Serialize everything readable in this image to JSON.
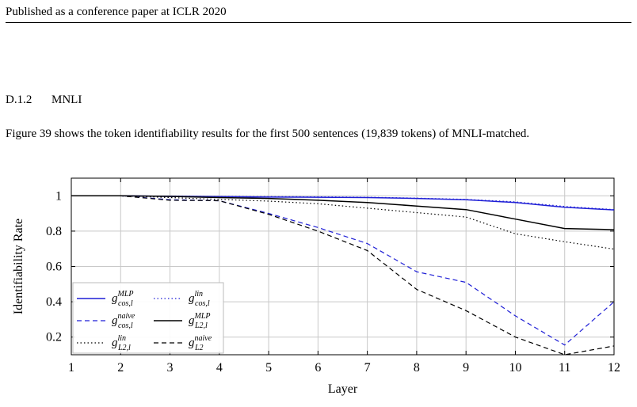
{
  "header": {
    "running_title": "Published as a conference paper at ICLR 2020"
  },
  "section": {
    "number": "D.1.2",
    "title": "MNLI"
  },
  "paragraph": "Figure 39 shows the token identifiability results for the first 500 sentences (19,839 tokens) of MNLI-matched.",
  "chart_data": {
    "type": "line",
    "xlabel": "Layer",
    "ylabel": "Identifiability Rate",
    "xlim": [
      1,
      12
    ],
    "ylim": [
      0.1,
      1.1
    ],
    "x": [
      1,
      2,
      3,
      4,
      5,
      6,
      7,
      8,
      9,
      10,
      11,
      12
    ],
    "xticks": [
      "1",
      "2",
      "3",
      "4",
      "5",
      "6",
      "7",
      "8",
      "9",
      "10",
      "11",
      "12"
    ],
    "yticks": [
      0.2,
      0.4,
      0.6,
      0.8,
      1.0
    ],
    "ytick_labels": [
      "0.2",
      "0.4",
      "0.6",
      "0.8",
      "1"
    ],
    "grid": true,
    "legend_position": "bottom-left",
    "series": [
      {
        "name": "MLP, cos, l",
        "base": "g",
        "sup": "MLP",
        "sub": "cos,l",
        "color": "#1f1fd6",
        "dash": "solid",
        "values": [
          1.0,
          1.0,
          0.997,
          0.995,
          0.993,
          0.992,
          0.99,
          0.985,
          0.978,
          0.962,
          0.935,
          0.92
        ]
      },
      {
        "name": "lin, cos, l",
        "base": "g",
        "sup": "lin",
        "sub": "cos,l",
        "color": "#1f1fd6",
        "dash": "dotted",
        "values": [
          1.0,
          1.0,
          0.998,
          0.996,
          0.995,
          0.994,
          0.992,
          0.987,
          0.98,
          0.966,
          0.94,
          0.922
        ]
      },
      {
        "name": "naive, cos, l",
        "base": "g",
        "sup": "naive",
        "sub": "cos,l",
        "color": "#1f1fd6",
        "dash": "dashed",
        "values": [
          1.0,
          1.0,
          0.978,
          0.972,
          0.9,
          0.82,
          0.73,
          0.57,
          0.51,
          0.32,
          0.155,
          0.4
        ]
      },
      {
        "name": "MLP, L2, l",
        "base": "g",
        "sup": "MLP",
        "sub": "L2,l",
        "color": "#000000",
        "dash": "solid",
        "values": [
          1.0,
          1.0,
          0.997,
          0.99,
          0.985,
          0.975,
          0.962,
          0.942,
          0.922,
          0.868,
          0.815,
          0.808
        ]
      },
      {
        "name": "lin, L2, l",
        "base": "g",
        "sup": "lin",
        "sub": "L2,l",
        "color": "#000000",
        "dash": "dotted",
        "values": [
          1.0,
          1.0,
          0.99,
          0.98,
          0.97,
          0.955,
          0.93,
          0.905,
          0.88,
          0.785,
          0.74,
          0.698
        ]
      },
      {
        "name": "naive, L2",
        "base": "g",
        "sup": "naive",
        "sub": "L2",
        "color": "#000000",
        "dash": "dashed",
        "values": [
          1.0,
          1.0,
          0.975,
          0.972,
          0.895,
          0.8,
          0.69,
          0.47,
          0.35,
          0.2,
          0.1,
          0.15
        ]
      }
    ]
  }
}
